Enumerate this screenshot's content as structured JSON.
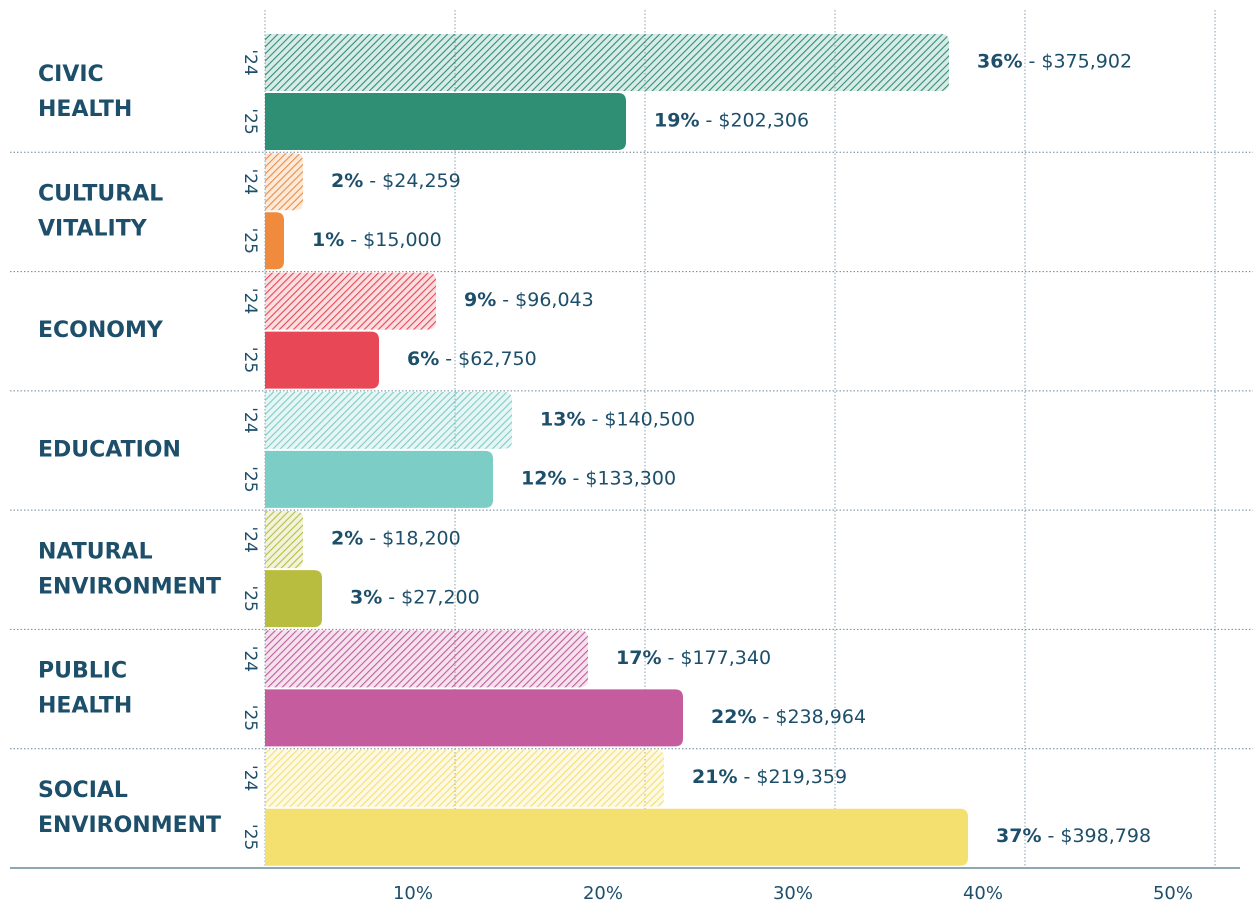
{
  "chart_data": {
    "type": "bar",
    "orientation": "horizontal",
    "categories": [
      "CIVIC HEALTH",
      "CULTURAL VITALITY",
      "ECONOMY",
      "EDUCATION",
      "NATURAL ENVIRONMENT",
      "PUBLIC HEALTH",
      "SOCIAL ENVIRONMENT"
    ],
    "colors": [
      "#2e8f75",
      "#f08a3c",
      "#e84756",
      "#7ccdc6",
      "#b9bd3f",
      "#c45c9e",
      "#f4e06e"
    ],
    "series": [
      {
        "name": "'24",
        "hatched": true,
        "values": [
          36,
          2,
          9,
          13,
          2,
          17,
          21
        ],
        "value_labels": [
          "36%",
          "2%",
          "9%",
          "13%",
          "2%",
          "17%",
          "21%"
        ],
        "amounts": [
          375902,
          24259,
          96043,
          140500,
          18200,
          177340,
          219359
        ],
        "amount_labels": [
          "- $375,902",
          "- $24,259",
          "- $96,043",
          "- $140,500",
          "- $18,200",
          "- $177,340",
          "- $219,359"
        ]
      },
      {
        "name": "'25",
        "hatched": false,
        "values": [
          19,
          1,
          6,
          12,
          3,
          22,
          37
        ],
        "value_labels": [
          "19%",
          "1%",
          "6%",
          "12%",
          "3%",
          "22%",
          "37%"
        ],
        "amounts": [
          202306,
          15000,
          62750,
          133300,
          27200,
          238964,
          398798
        ],
        "amount_labels": [
          "- $202,306",
          "- $15,000",
          "- $62,750",
          "- $133,300",
          "- $27,200",
          "- $238,964",
          "- $398,798"
        ]
      }
    ],
    "xlim": [
      0,
      50
    ],
    "xticks": [
      {
        "value": 10,
        "label": "10%"
      },
      {
        "value": 20,
        "label": "20%"
      },
      {
        "value": 30,
        "label": "30%"
      },
      {
        "value": 40,
        "label": "40%"
      },
      {
        "value": 50,
        "label": "50%"
      }
    ],
    "grid": true
  }
}
